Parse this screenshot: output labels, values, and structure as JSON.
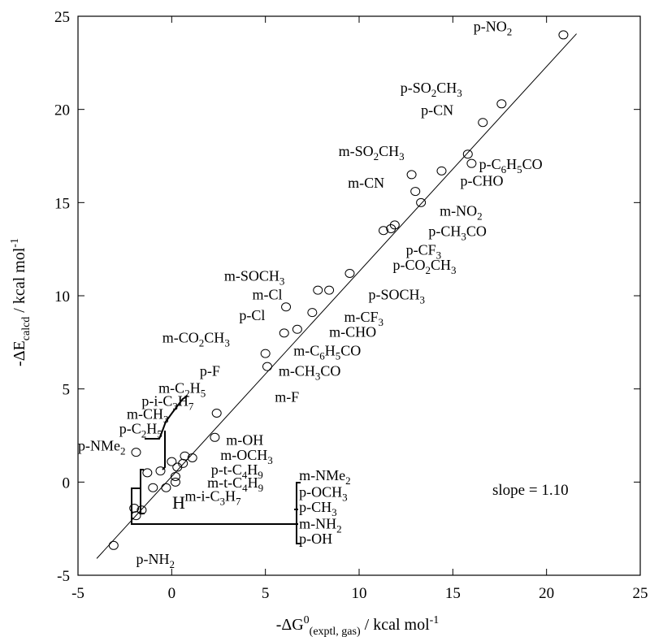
{
  "chart_data": {
    "type": "scatter",
    "xlabel": {
      "pre": "-ΔG",
      "sup": "0",
      "sub": "(exptl, gas)",
      "post": " / kcal mol",
      "sup2": "-1"
    },
    "ylabel": {
      "pre": "-ΔE",
      "sub": "calcd",
      "post": " / kcal mol",
      "sup": "-1"
    },
    "xlim": [
      -5,
      25
    ],
    "ylim": [
      -5,
      25
    ],
    "xticks": [
      -5,
      0,
      5,
      10,
      15,
      20,
      25
    ],
    "yticks": [
      -5,
      0,
      5,
      10,
      15,
      20,
      25
    ],
    "annotation": "slope = 1.10",
    "H_marker": "H",
    "fit_line": {
      "slope": 1.1,
      "x_range": [
        -4.0,
        21.6
      ],
      "y_at_x0": 0.3
    },
    "points": [
      {
        "x": -3.1,
        "y": -3.4
      },
      {
        "x": -2.0,
        "y": -1.4
      },
      {
        "x": -1.9,
        "y": -1.8
      },
      {
        "x": -1.9,
        "y": 1.6
      },
      {
        "x": -1.6,
        "y": -1.5
      },
      {
        "x": -1.3,
        "y": 0.5
      },
      {
        "x": -1.0,
        "y": -0.3
      },
      {
        "x": -0.6,
        "y": 0.6
      },
      {
        "x": -0.3,
        "y": -0.3
      },
      {
        "x": 0.0,
        "y": 1.1
      },
      {
        "x": 0.2,
        "y": 0.3
      },
      {
        "x": 0.2,
        "y": 0.0
      },
      {
        "x": 0.3,
        "y": 0.8
      },
      {
        "x": 0.6,
        "y": 1.0
      },
      {
        "x": 0.7,
        "y": 1.4
      },
      {
        "x": 1.1,
        "y": 1.3
      },
      {
        "x": 2.3,
        "y": 2.4
      },
      {
        "x": 2.4,
        "y": 3.7
      },
      {
        "x": 5.0,
        "y": 6.9
      },
      {
        "x": 5.1,
        "y": 6.2
      },
      {
        "x": 6.0,
        "y": 8.0
      },
      {
        "x": 6.1,
        "y": 9.4
      },
      {
        "x": 6.7,
        "y": 8.2
      },
      {
        "x": 7.5,
        "y": 9.1
      },
      {
        "x": 7.8,
        "y": 10.3
      },
      {
        "x": 8.4,
        "y": 10.3
      },
      {
        "x": 9.5,
        "y": 11.2
      },
      {
        "x": 11.3,
        "y": 13.5
      },
      {
        "x": 11.7,
        "y": 13.6
      },
      {
        "x": 11.9,
        "y": 13.8
      },
      {
        "x": 12.8,
        "y": 16.5
      },
      {
        "x": 13.0,
        "y": 15.6
      },
      {
        "x": 13.3,
        "y": 15.0
      },
      {
        "x": 14.4,
        "y": 16.7
      },
      {
        "x": 15.8,
        "y": 17.6
      },
      {
        "x": 16.0,
        "y": 17.1
      },
      {
        "x": 16.6,
        "y": 19.3
      },
      {
        "x": 17.6,
        "y": 20.3
      },
      {
        "x": 20.9,
        "y": 24.0
      }
    ],
    "labels": [
      {
        "text": "p-NO",
        "sub": "2",
        "x": 16.1,
        "y": 24.2
      },
      {
        "text": "p-SO",
        "sub": "2",
        "post": "CH",
        "sub2": "3",
        "x": 12.2,
        "y": 20.9
      },
      {
        "text": "p-CN",
        "x": 13.3,
        "y": 19.7
      },
      {
        "text": "m-SO",
        "sub": "2",
        "post": "CH",
        "sub2": "3",
        "x": 8.9,
        "y": 17.5
      },
      {
        "text": "p-C",
        "sub": "6",
        "post": "H",
        "sub2": "5",
        "post2": "CO",
        "x": 16.4,
        "y": 16.8
      },
      {
        "text": "p-CHO",
        "x": 15.4,
        "y": 15.9
      },
      {
        "text": "m-CN",
        "x": 9.4,
        "y": 15.8
      },
      {
        "text": "m-NO",
        "sub": "2",
        "x": 14.3,
        "y": 14.3
      },
      {
        "text": "p-CH",
        "sub": "3",
        "post": "CO",
        "x": 13.7,
        "y": 13.2
      },
      {
        "text": "p-CF",
        "sub": "3",
        "x": 12.5,
        "y": 12.2
      },
      {
        "text": "p-CO",
        "sub": "2",
        "post": "CH",
        "sub2": "3",
        "x": 11.8,
        "y": 11.4
      },
      {
        "text": "m-SOCH",
        "sub": "3",
        "x": 2.8,
        "y": 10.8
      },
      {
        "text": "m-Cl",
        "x": 4.3,
        "y": 9.8
      },
      {
        "text": "p-SOCH",
        "sub": "3",
        "x": 10.5,
        "y": 9.8
      },
      {
        "text": "p-Cl",
        "x": 3.6,
        "y": 8.7
      },
      {
        "text": "m-CF",
        "sub": "3",
        "x": 9.2,
        "y": 8.6
      },
      {
        "text": "m-CO",
        "sub": "2",
        "post": "CH",
        "sub2": "3",
        "x": -0.5,
        "y": 7.5
      },
      {
        "text": "m-CHO",
        "x": 8.4,
        "y": 7.8
      },
      {
        "text": "m-C",
        "sub": "6",
        "post": "H",
        "sub2": "5",
        "post2": "CO",
        "x": 6.5,
        "y": 6.8
      },
      {
        "text": "p-F",
        "x": 1.5,
        "y": 5.7
      },
      {
        "text": "m-CH",
        "sub": "3",
        "post": "CO",
        "x": 5.7,
        "y": 5.7
      },
      {
        "text": "m-F",
        "x": 5.5,
        "y": 4.3
      },
      {
        "text": "m-C",
        "sub": "2",
        "post": "H",
        "sub2": "5",
        "x": -0.7,
        "y": 4.8
      },
      {
        "text": "p-i-C",
        "sub": "3",
        "post": "H",
        "sub2": "7",
        "x": -1.6,
        "y": 4.1
      },
      {
        "text": "m-CH",
        "sub": "3",
        "x": -2.4,
        "y": 3.4
      },
      {
        "text": "p-C",
        "sub": "2",
        "post": "H",
        "sub2": "5",
        "x": -2.8,
        "y": 2.6
      },
      {
        "text": "p-NMe",
        "sub": "2",
        "x": -5.0,
        "y": 1.7
      },
      {
        "text": "m-OH",
        "x": 2.9,
        "y": 2.0
      },
      {
        "text": "m-OCH",
        "sub": "3",
        "x": 2.6,
        "y": 1.2
      },
      {
        "text": "p-t-C",
        "sub": "4",
        "post": "H",
        "sub2": "9",
        "x": 2.1,
        "y": 0.4
      },
      {
        "text": "m-t-C",
        "sub": "4",
        "post": "H",
        "sub2": "9",
        "x": 1.9,
        "y": -0.3
      },
      {
        "text": "m-i-C",
        "sub": "3",
        "post": "H",
        "sub2": "7",
        "x": 0.7,
        "y": -1.0
      },
      {
        "text": "m-NMe",
        "sub": "2",
        "x": 6.8,
        "y": 0.1
      },
      {
        "text": "p-OCH",
        "sub": "3",
        "x": 6.8,
        "y": -0.8
      },
      {
        "text": "p-CH",
        "sub": "3",
        "x": 6.8,
        "y": -1.6
      },
      {
        "text": "m-NH",
        "sub": "2",
        "x": 6.8,
        "y": -2.5
      },
      {
        "text": "p-OH",
        "x": 6.8,
        "y": -3.3
      },
      {
        "text": "p-NH",
        "sub": "2",
        "x": -1.9,
        "y": -4.4
      }
    ]
  }
}
